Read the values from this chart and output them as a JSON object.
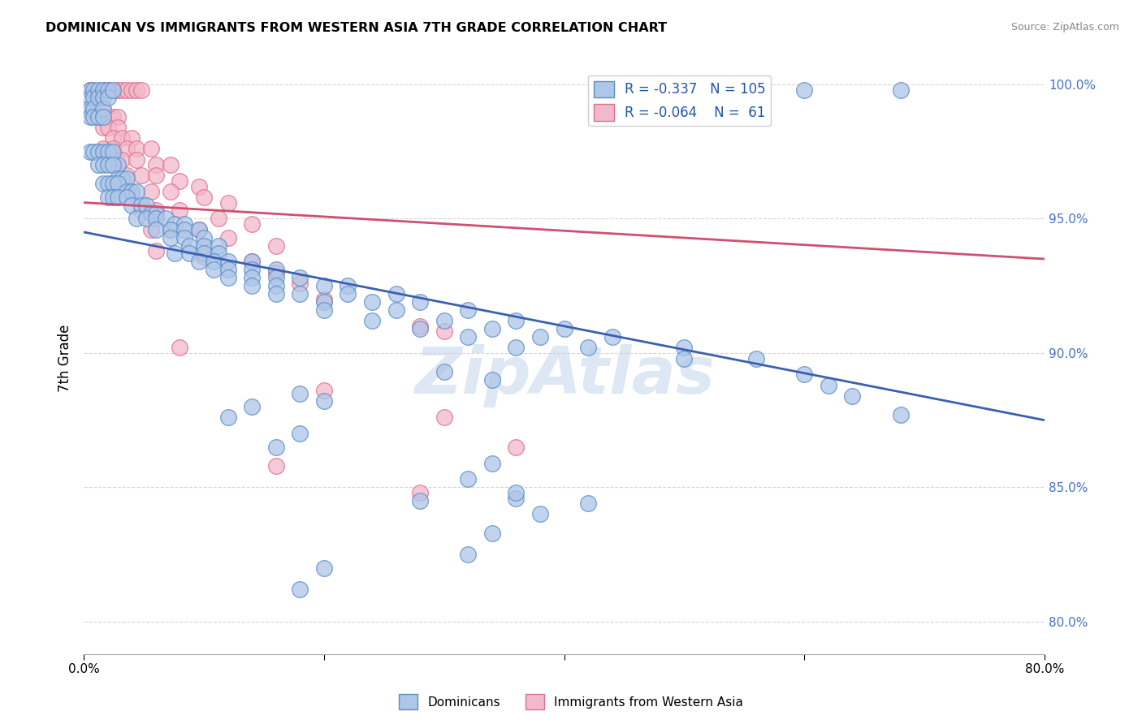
{
  "title": "DOMINICAN VS IMMIGRANTS FROM WESTERN ASIA 7TH GRADE CORRELATION CHART",
  "source": "Source: ZipAtlas.com",
  "ylabel": "7th Grade",
  "xlim": [
    0.0,
    0.8
  ],
  "ylim": [
    0.788,
    1.008
  ],
  "yticks": [
    0.8,
    0.85,
    0.9,
    0.95,
    1.0
  ],
  "ytick_labels": [
    "80.0%",
    "85.0%",
    "90.0%",
    "95.0%",
    "100.0%"
  ],
  "xtick_pos": [
    0.0,
    0.2,
    0.4,
    0.6,
    0.8
  ],
  "xtick_labels": [
    "0.0%",
    "",
    "",
    "",
    "80.0%"
  ],
  "legend_label1": "Dominicans",
  "legend_label2": "Immigrants from Western Asia",
  "r1": -0.337,
  "n1": 105,
  "r2": -0.064,
  "n2": 61,
  "blue_color": "#aec6e8",
  "pink_color": "#f2b8cb",
  "blue_edge_color": "#5b8dc8",
  "pink_edge_color": "#e0708a",
  "blue_line_color": "#3a60b0",
  "pink_line_color": "#d05070",
  "blue_line": [
    [
      0.0,
      0.945
    ],
    [
      0.8,
      0.875
    ]
  ],
  "pink_line": [
    [
      0.0,
      0.956
    ],
    [
      0.8,
      0.935
    ]
  ],
  "watermark": "ZipAtlas",
  "blue_dots": [
    [
      0.005,
      0.998
    ],
    [
      0.005,
      0.995
    ],
    [
      0.005,
      0.991
    ],
    [
      0.005,
      0.988
    ],
    [
      0.008,
      0.998
    ],
    [
      0.008,
      0.995
    ],
    [
      0.008,
      0.991
    ],
    [
      0.008,
      0.988
    ],
    [
      0.012,
      0.998
    ],
    [
      0.012,
      0.995
    ],
    [
      0.012,
      0.988
    ],
    [
      0.016,
      0.998
    ],
    [
      0.016,
      0.995
    ],
    [
      0.016,
      0.991
    ],
    [
      0.016,
      0.988
    ],
    [
      0.02,
      0.998
    ],
    [
      0.02,
      0.995
    ],
    [
      0.024,
      0.998
    ],
    [
      0.028,
      0.97
    ],
    [
      0.005,
      0.975
    ],
    [
      0.008,
      0.975
    ],
    [
      0.012,
      0.975
    ],
    [
      0.016,
      0.975
    ],
    [
      0.02,
      0.975
    ],
    [
      0.024,
      0.975
    ],
    [
      0.012,
      0.97
    ],
    [
      0.016,
      0.97
    ],
    [
      0.02,
      0.97
    ],
    [
      0.024,
      0.97
    ],
    [
      0.028,
      0.965
    ],
    [
      0.032,
      0.965
    ],
    [
      0.036,
      0.965
    ],
    [
      0.016,
      0.963
    ],
    [
      0.02,
      0.963
    ],
    [
      0.024,
      0.963
    ],
    [
      0.028,
      0.963
    ],
    [
      0.036,
      0.96
    ],
    [
      0.04,
      0.96
    ],
    [
      0.044,
      0.96
    ],
    [
      0.02,
      0.958
    ],
    [
      0.024,
      0.958
    ],
    [
      0.028,
      0.958
    ],
    [
      0.036,
      0.958
    ],
    [
      0.04,
      0.955
    ],
    [
      0.048,
      0.955
    ],
    [
      0.052,
      0.955
    ],
    [
      0.056,
      0.952
    ],
    [
      0.06,
      0.952
    ],
    [
      0.044,
      0.95
    ],
    [
      0.052,
      0.95
    ],
    [
      0.06,
      0.95
    ],
    [
      0.068,
      0.95
    ],
    [
      0.076,
      0.948
    ],
    [
      0.084,
      0.948
    ],
    [
      0.06,
      0.946
    ],
    [
      0.072,
      0.946
    ],
    [
      0.084,
      0.946
    ],
    [
      0.096,
      0.946
    ],
    [
      0.072,
      0.943
    ],
    [
      0.084,
      0.943
    ],
    [
      0.1,
      0.943
    ],
    [
      0.088,
      0.94
    ],
    [
      0.1,
      0.94
    ],
    [
      0.112,
      0.94
    ],
    [
      0.076,
      0.937
    ],
    [
      0.088,
      0.937
    ],
    [
      0.1,
      0.937
    ],
    [
      0.112,
      0.937
    ],
    [
      0.096,
      0.934
    ],
    [
      0.108,
      0.934
    ],
    [
      0.12,
      0.934
    ],
    [
      0.14,
      0.934
    ],
    [
      0.108,
      0.931
    ],
    [
      0.12,
      0.931
    ],
    [
      0.14,
      0.931
    ],
    [
      0.16,
      0.931
    ],
    [
      0.12,
      0.928
    ],
    [
      0.14,
      0.928
    ],
    [
      0.16,
      0.928
    ],
    [
      0.18,
      0.928
    ],
    [
      0.14,
      0.925
    ],
    [
      0.16,
      0.925
    ],
    [
      0.2,
      0.925
    ],
    [
      0.22,
      0.925
    ],
    [
      0.16,
      0.922
    ],
    [
      0.18,
      0.922
    ],
    [
      0.22,
      0.922
    ],
    [
      0.26,
      0.922
    ],
    [
      0.2,
      0.919
    ],
    [
      0.24,
      0.919
    ],
    [
      0.28,
      0.919
    ],
    [
      0.2,
      0.916
    ],
    [
      0.26,
      0.916
    ],
    [
      0.32,
      0.916
    ],
    [
      0.24,
      0.912
    ],
    [
      0.3,
      0.912
    ],
    [
      0.36,
      0.912
    ],
    [
      0.28,
      0.909
    ],
    [
      0.34,
      0.909
    ],
    [
      0.4,
      0.909
    ],
    [
      0.32,
      0.906
    ],
    [
      0.38,
      0.906
    ],
    [
      0.44,
      0.906
    ],
    [
      0.36,
      0.902
    ],
    [
      0.42,
      0.902
    ],
    [
      0.5,
      0.902
    ],
    [
      0.5,
      0.898
    ],
    [
      0.56,
      0.898
    ],
    [
      0.6,
      0.892
    ],
    [
      0.62,
      0.888
    ],
    [
      0.64,
      0.884
    ],
    [
      0.68,
      0.877
    ],
    [
      0.3,
      0.893
    ],
    [
      0.34,
      0.89
    ],
    [
      0.18,
      0.885
    ],
    [
      0.2,
      0.882
    ],
    [
      0.14,
      0.88
    ],
    [
      0.12,
      0.876
    ],
    [
      0.18,
      0.87
    ],
    [
      0.16,
      0.865
    ],
    [
      0.34,
      0.859
    ],
    [
      0.32,
      0.853
    ],
    [
      0.36,
      0.846
    ],
    [
      0.38,
      0.84
    ],
    [
      0.34,
      0.833
    ],
    [
      0.32,
      0.825
    ],
    [
      0.28,
      0.845
    ],
    [
      0.2,
      0.82
    ],
    [
      0.18,
      0.812
    ],
    [
      0.36,
      0.848
    ],
    [
      0.42,
      0.844
    ],
    [
      0.6,
      0.998
    ],
    [
      0.68,
      0.998
    ]
  ],
  "pink_dots": [
    [
      0.005,
      0.998
    ],
    [
      0.016,
      0.998
    ],
    [
      0.02,
      0.998
    ],
    [
      0.028,
      0.998
    ],
    [
      0.032,
      0.998
    ],
    [
      0.036,
      0.998
    ],
    [
      0.04,
      0.998
    ],
    [
      0.044,
      0.998
    ],
    [
      0.048,
      0.998
    ],
    [
      0.005,
      0.99
    ],
    [
      0.008,
      0.99
    ],
    [
      0.016,
      0.99
    ],
    [
      0.02,
      0.988
    ],
    [
      0.024,
      0.988
    ],
    [
      0.028,
      0.988
    ],
    [
      0.016,
      0.984
    ],
    [
      0.02,
      0.984
    ],
    [
      0.028,
      0.984
    ],
    [
      0.024,
      0.98
    ],
    [
      0.032,
      0.98
    ],
    [
      0.04,
      0.98
    ],
    [
      0.016,
      0.976
    ],
    [
      0.024,
      0.976
    ],
    [
      0.036,
      0.976
    ],
    [
      0.044,
      0.976
    ],
    [
      0.056,
      0.976
    ],
    [
      0.024,
      0.972
    ],
    [
      0.032,
      0.972
    ],
    [
      0.044,
      0.972
    ],
    [
      0.06,
      0.97
    ],
    [
      0.072,
      0.97
    ],
    [
      0.036,
      0.966
    ],
    [
      0.048,
      0.966
    ],
    [
      0.06,
      0.966
    ],
    [
      0.08,
      0.964
    ],
    [
      0.096,
      0.962
    ],
    [
      0.04,
      0.96
    ],
    [
      0.056,
      0.96
    ],
    [
      0.072,
      0.96
    ],
    [
      0.1,
      0.958
    ],
    [
      0.12,
      0.956
    ],
    [
      0.048,
      0.953
    ],
    [
      0.06,
      0.953
    ],
    [
      0.08,
      0.953
    ],
    [
      0.112,
      0.95
    ],
    [
      0.14,
      0.948
    ],
    [
      0.056,
      0.946
    ],
    [
      0.072,
      0.946
    ],
    [
      0.096,
      0.946
    ],
    [
      0.12,
      0.943
    ],
    [
      0.16,
      0.94
    ],
    [
      0.06,
      0.938
    ],
    [
      0.1,
      0.936
    ],
    [
      0.14,
      0.934
    ],
    [
      0.16,
      0.93
    ],
    [
      0.18,
      0.926
    ],
    [
      0.2,
      0.92
    ],
    [
      0.28,
      0.91
    ],
    [
      0.3,
      0.908
    ],
    [
      0.08,
      0.902
    ],
    [
      0.2,
      0.886
    ],
    [
      0.3,
      0.876
    ],
    [
      0.36,
      0.865
    ],
    [
      0.16,
      0.858
    ],
    [
      0.28,
      0.848
    ]
  ]
}
